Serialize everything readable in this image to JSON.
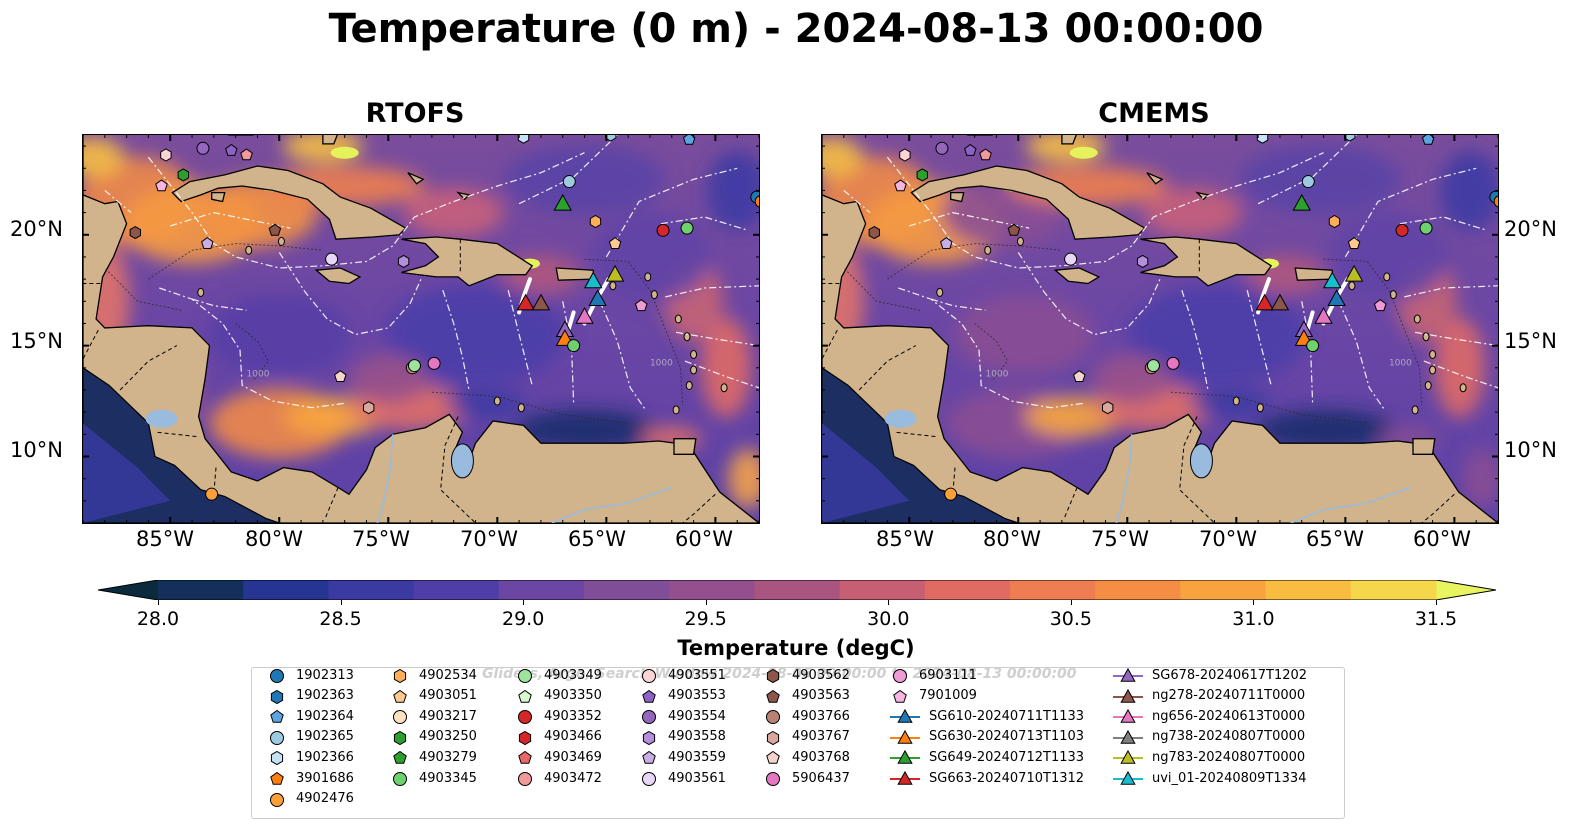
{
  "title": "Temperature (0 m) - 2024-08-13 00:00:00",
  "panels": [
    {
      "title": "RTOFS"
    },
    {
      "title": "CMEMS"
    }
  ],
  "lat_ticks": [
    "20°N",
    "15°N",
    "10°N"
  ],
  "lon_ticks": [
    "85°W",
    "80°W",
    "75°W",
    "70°W",
    "65°W",
    "60°W"
  ],
  "colorbar": {
    "label": "Temperature (degC)",
    "ticks": [
      "28.0",
      "28.5",
      "29.0",
      "29.5",
      "30.0",
      "30.5",
      "31.0",
      "31.5"
    ],
    "colors": [
      "#0b2a3c",
      "#152f5c",
      "#263591",
      "#3b3aa2",
      "#503ea8",
      "#6b47a3",
      "#804d98",
      "#944f8f",
      "#a9557f",
      "#c65f74",
      "#df6b63",
      "#ee7e52",
      "#f58e44",
      "#f9a33e",
      "#f8bc40",
      "#f6d64a",
      "#e8f560"
    ]
  },
  "legend": {
    "watermark": "Gliders, Argo, Search Window 2024-08-06 00:00:00 to 2024-08-13 00:00:00",
    "items": [
      {
        "label": "1902313",
        "marker": "circle",
        "color": "#1f77b4"
      },
      {
        "label": "1902363",
        "marker": "hexagon",
        "color": "#1f77b4"
      },
      {
        "label": "1902364",
        "marker": "pentagon",
        "color": "#5da5e0"
      },
      {
        "label": "1902365",
        "marker": "circle",
        "color": "#9ecae1"
      },
      {
        "label": "1902366",
        "marker": "hexagon",
        "color": "#c6e2f5"
      },
      {
        "label": "3901686",
        "marker": "pentagon",
        "color": "#ff7f0e"
      },
      {
        "label": "4902476",
        "marker": "circle",
        "color": "#ff9f3a"
      },
      {
        "label": "4902534",
        "marker": "hexagon",
        "color": "#ffae5a"
      },
      {
        "label": "4903051",
        "marker": "pentagon",
        "color": "#ffc98f"
      },
      {
        "label": "4903217",
        "marker": "circle",
        "color": "#ffe0c0"
      },
      {
        "label": "4903250",
        "marker": "hexagon",
        "color": "#2ca02c"
      },
      {
        "label": "4903279",
        "marker": "pentagon",
        "color": "#2ca02c"
      },
      {
        "label": "4903345",
        "marker": "circle",
        "color": "#6fd06f"
      },
      {
        "label": "4903349",
        "marker": "circle",
        "color": "#9de59d"
      },
      {
        "label": "4903350",
        "marker": "pentagon",
        "color": "#d8f8d0"
      },
      {
        "label": "4903352",
        "marker": "circle",
        "color": "#d62728"
      },
      {
        "label": "4903466",
        "marker": "hexagon",
        "color": "#d62728"
      },
      {
        "label": "4903469",
        "marker": "pentagon",
        "color": "#e8686a"
      },
      {
        "label": "4903472",
        "marker": "circle",
        "color": "#f09a9b"
      },
      {
        "label": "4903551",
        "marker": "circle",
        "color": "#fcd4d4"
      },
      {
        "label": "4903553",
        "marker": "pentagon",
        "color": "#8c62c6"
      },
      {
        "label": "4903554",
        "marker": "circle",
        "color": "#9467bd"
      },
      {
        "label": "4903558",
        "marker": "hexagon",
        "color": "#b48fdc"
      },
      {
        "label": "4903559",
        "marker": "pentagon",
        "color": "#c9aee6"
      },
      {
        "label": "4903561",
        "marker": "circle",
        "color": "#e7d6f5"
      },
      {
        "label": "4903562",
        "marker": "hexagon",
        "color": "#8c564b"
      },
      {
        "label": "4903563",
        "marker": "pentagon",
        "color": "#8c564b"
      },
      {
        "label": "4903766",
        "marker": "circle",
        "color": "#b88376"
      },
      {
        "label": "4903767",
        "marker": "hexagon",
        "color": "#d9a89d"
      },
      {
        "label": "4903768",
        "marker": "pentagon",
        "color": "#f3d5cd"
      },
      {
        "label": "5906437",
        "marker": "circle",
        "color": "#e377c2"
      },
      {
        "label": "6903111",
        "marker": "circle",
        "color": "#f09bd6"
      },
      {
        "label": "7901009",
        "marker": "pentagon",
        "color": "#f7b6e0"
      },
      {
        "label": "SG610-20240711T1133",
        "marker": "triangle",
        "color": "#1f77b4"
      },
      {
        "label": "SG630-20240713T1103",
        "marker": "triangle",
        "color": "#ff7f0e"
      },
      {
        "label": "SG649-20240712T1133",
        "marker": "triangle",
        "color": "#2ca02c"
      },
      {
        "label": "SG663-20240710T1312",
        "marker": "triangle",
        "color": "#d62728"
      },
      {
        "label": "SG678-20240617T1202",
        "marker": "triangle",
        "color": "#9467bd"
      },
      {
        "label": "ng278-20240711T0000",
        "marker": "triangle",
        "color": "#8c564b"
      },
      {
        "label": "ng656-20240613T0000",
        "marker": "triangle",
        "color": "#e377c2"
      },
      {
        "label": "ng738-20240807T0000",
        "marker": "triangle",
        "color": "#7f7f7f"
      },
      {
        "label": "ng783-20240807T0000",
        "marker": "triangle",
        "color": "#bcbd22"
      },
      {
        "label": "uvi_01-20240809T1334",
        "marker": "triangle",
        "color": "#17becf"
      }
    ]
  }
}
